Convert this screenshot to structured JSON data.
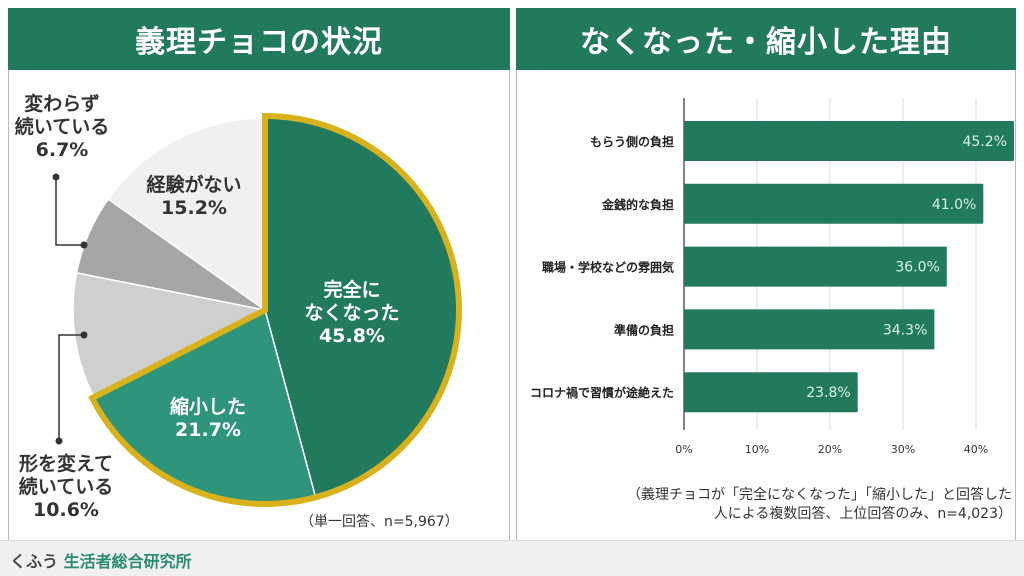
{
  "footer": {
    "brand_a": "くふう",
    "brand_b": "生活者総合研究所"
  },
  "chart_data": [
    {
      "type": "pie",
      "title": "義理チョコの状況",
      "note": "（単一回答、n=5,967）",
      "slices": [
        {
          "label": "完全に\nなくなった",
          "value": 45.8,
          "value_label": "45.8%",
          "color": "#227a5e"
        },
        {
          "label": "縮小した",
          "value": 21.7,
          "value_label": "21.7%",
          "color": "#2e957a"
        },
        {
          "label": "形を変えて\n続いている",
          "value": 10.6,
          "value_label": "10.6%",
          "color": "#cfcfcf"
        },
        {
          "label": "変わらず\n続いている",
          "value": 6.7,
          "value_label": "6.7%",
          "color": "#a6a6a6"
        },
        {
          "label": "経験がない",
          "value": 15.2,
          "value_label": "15.2%",
          "color": "#f0f0f0"
        }
      ],
      "highlight_color": "#d9b11a"
    },
    {
      "type": "bar",
      "orientation": "horizontal",
      "title": "なくなった・縮小した理由",
      "note_line1": "（義理チョコが「完全になくなった」「縮小した」と回答した",
      "note_line2": "人による複数回答、上位回答のみ、n=4,023）",
      "categories": [
        "もらう側の負担",
        "金銭的な負担",
        "職場・学校などの雰囲気",
        "準備の負担",
        "コロナ禍で習慣が途絶えた"
      ],
      "values": [
        45.2,
        41.0,
        36.0,
        34.3,
        23.8
      ],
      "value_labels": [
        "45.2%",
        "41.0%",
        "36.0%",
        "34.3%",
        "23.8%"
      ],
      "xticks": [
        "0%",
        "10%",
        "20%",
        "30%",
        "40%"
      ],
      "xlim": [
        0,
        46
      ],
      "grid": true,
      "color": "#227a5e"
    }
  ]
}
